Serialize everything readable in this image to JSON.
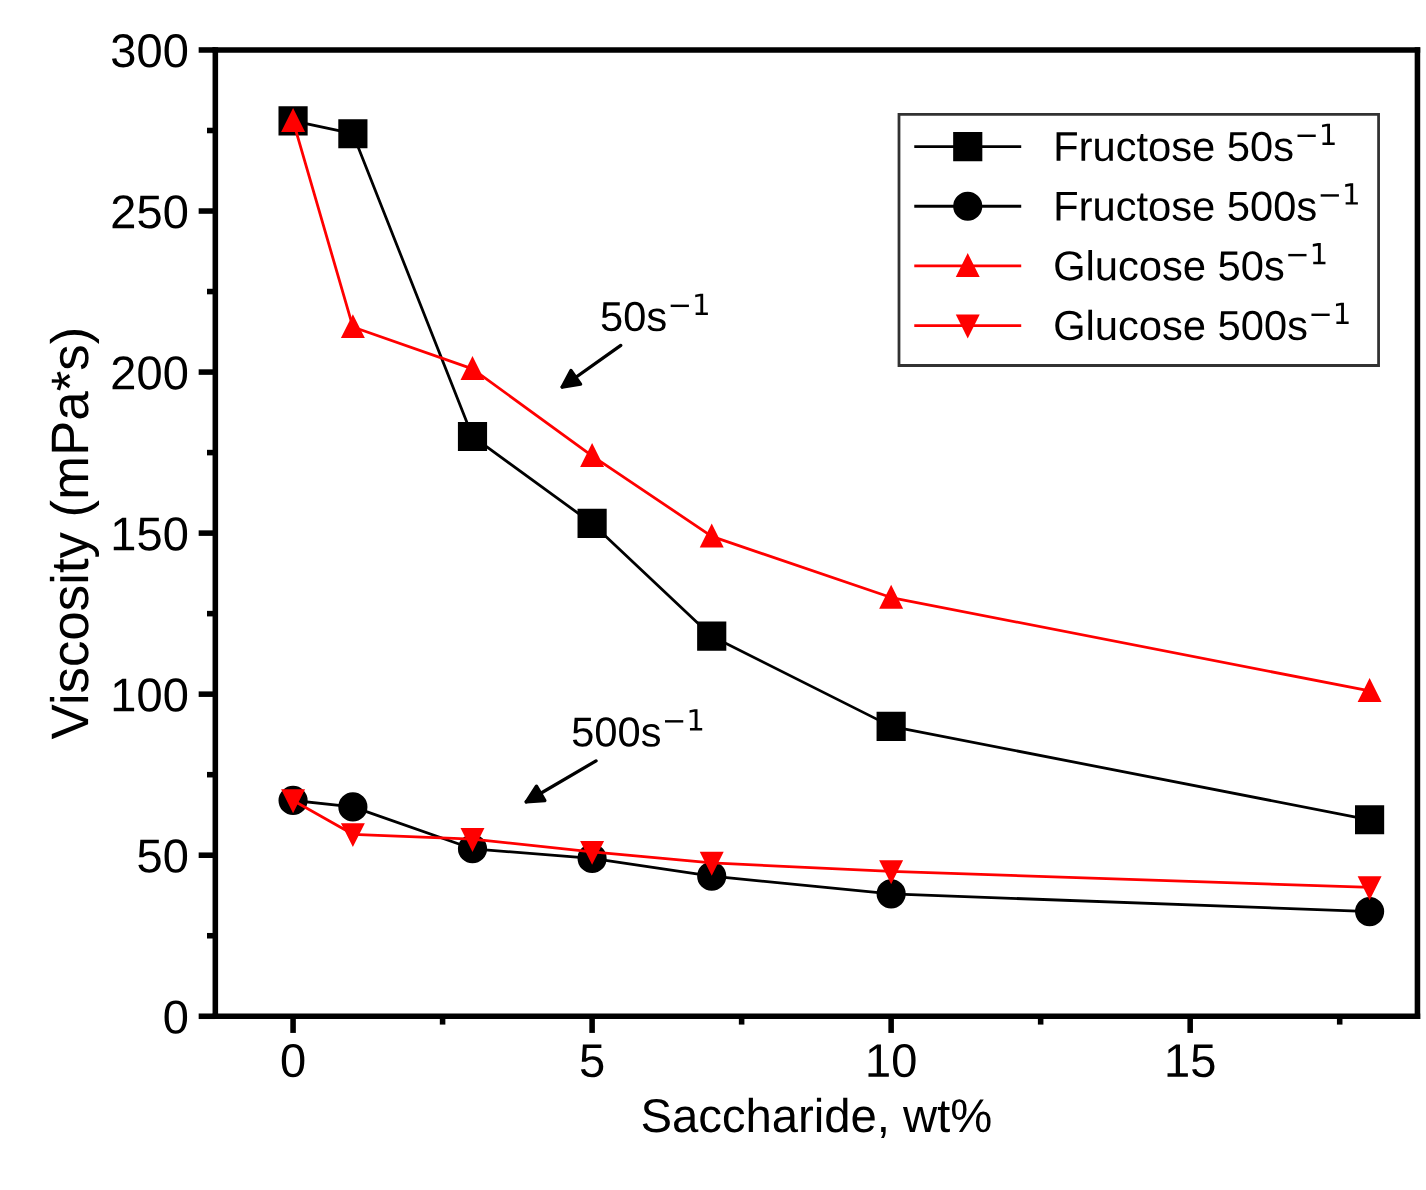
{
  "chart_data": {
    "type": "line",
    "xlabel": "Saccharide, wt%",
    "ylabel": "Viscosity (mPa*s)",
    "xlim": [
      -1.3,
      18.8
    ],
    "xticks": [
      0,
      5,
      10,
      15
    ],
    "ylim": [
      0,
      300
    ],
    "yticks": [
      0,
      50,
      100,
      150,
      200,
      250,
      300
    ],
    "grid": false,
    "legend": "top right",
    "line_style": "solid",
    "series": [
      {
        "name": "Fructose 50s$^{−1}$",
        "color": "#000000",
        "marker": "square",
        "x": [
          0,
          1,
          3,
          5,
          7,
          10,
          18
        ],
        "values": [
          278,
          274,
          180,
          153,
          118,
          90,
          61
        ]
      },
      {
        "name": "Fructose 500s$^{−1}$",
        "color": "#000000",
        "marker": "circle",
        "x": [
          0,
          1,
          3,
          5,
          7,
          10,
          18
        ],
        "values": [
          67,
          65,
          52,
          49,
          43.5,
          38,
          32.5
        ]
      },
      {
        "name": "Glucose 50s$^{−1}$",
        "color": "#ff0000",
        "marker": "triangle",
        "x": [
          0,
          1,
          3,
          5,
          7,
          10,
          18
        ],
        "values": [
          278,
          214,
          201,
          174,
          149,
          130,
          101
        ]
      },
      {
        "name": "Glucose 500s$^{−1}$",
        "color": "#ff0000",
        "marker": "triangle-down",
        "x": [
          0,
          1,
          3,
          5,
          7,
          10,
          18
        ],
        "values": [
          67,
          56.5,
          55,
          51,
          47.6,
          45,
          40
        ]
      }
    ],
    "annotations": [
      "50s$^{−1}$",
      "500s$^{−1}$"
    ]
  }
}
